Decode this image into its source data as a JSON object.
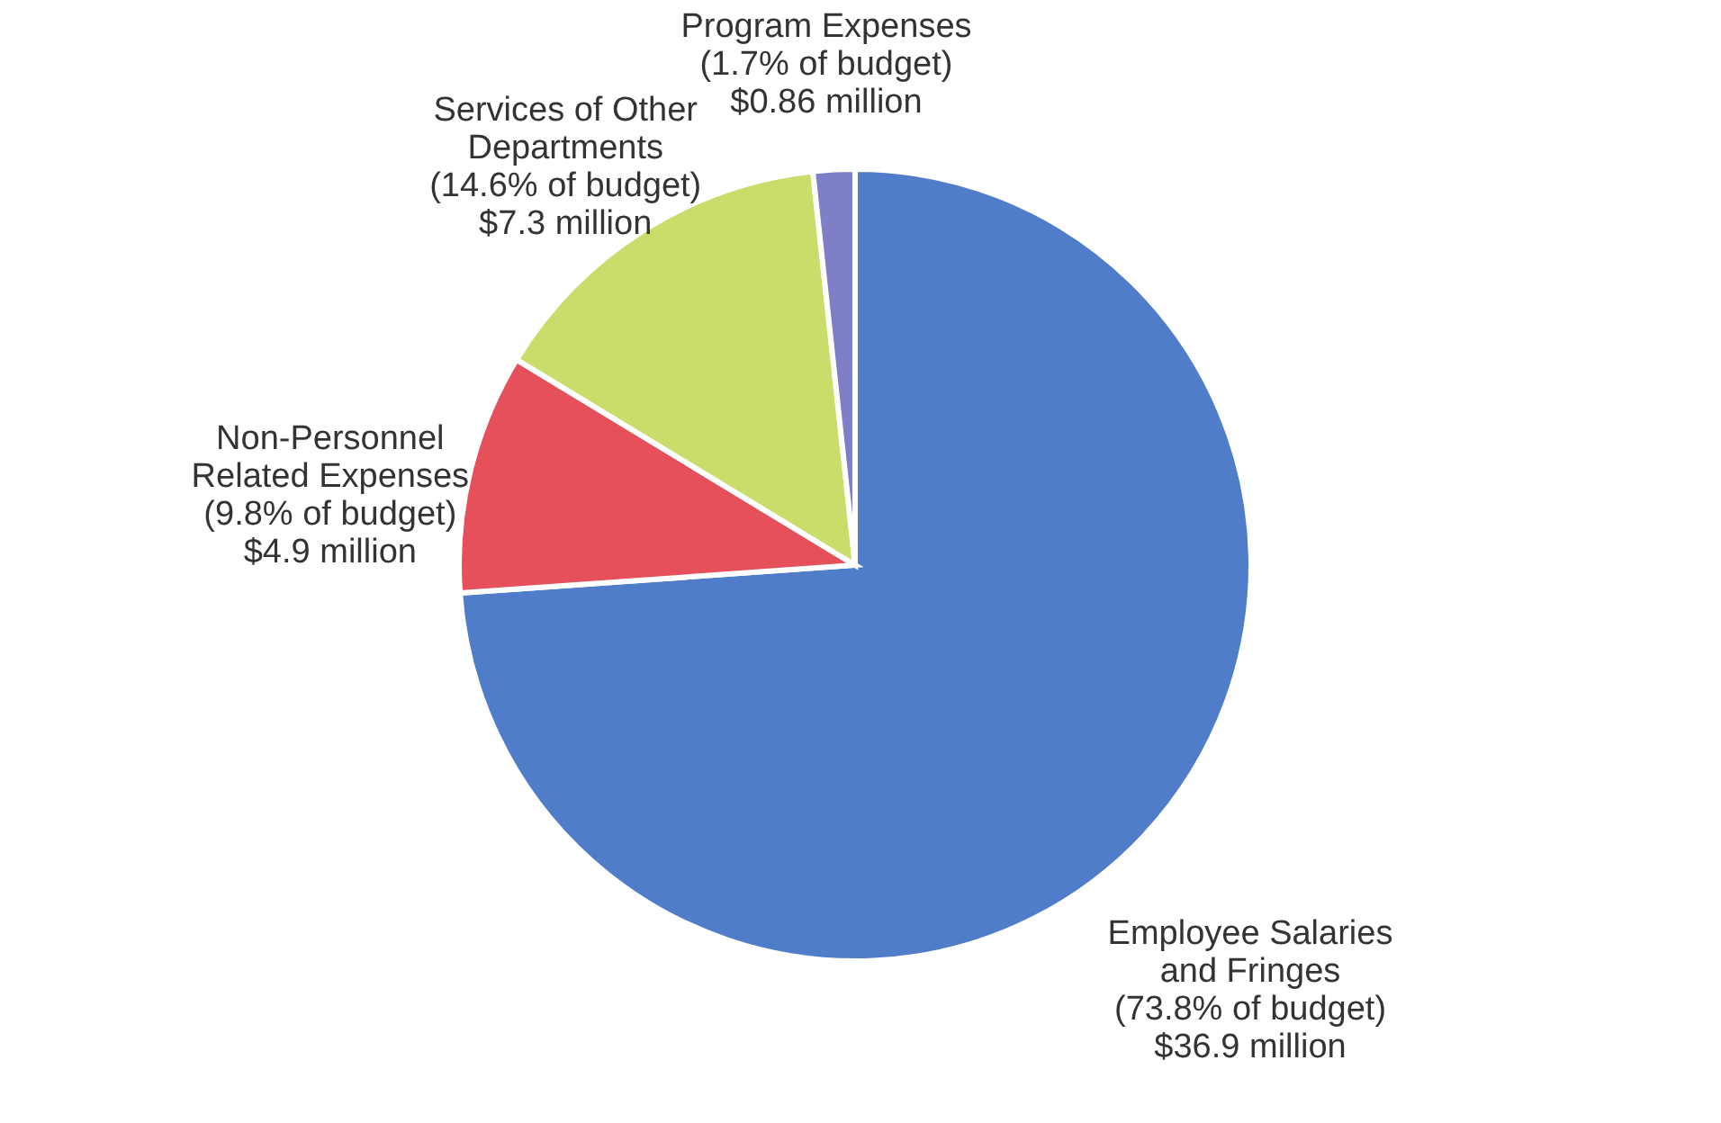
{
  "chart_data": {
    "type": "pie",
    "categories": [
      "Employee Salaries\nand Fringes",
      "Non-Personnel\nRelated Expenses",
      "Services of Other\nDepartments",
      "Program Expenses"
    ],
    "values": [
      73.8,
      9.8,
      14.6,
      1.7
    ],
    "value_labels": [
      "(73.8% of budget)\n$36.9 million",
      "(9.8% of budget)\n$4.9 million",
      "(14.6% of budget)\n$7.3 million",
      "(1.7% of budget)\n$0.86 million"
    ],
    "colors": [
      "#4f7dc9",
      "#e5505a",
      "#c9dd6b",
      "#7f7fc8"
    ],
    "legend": false
  }
}
